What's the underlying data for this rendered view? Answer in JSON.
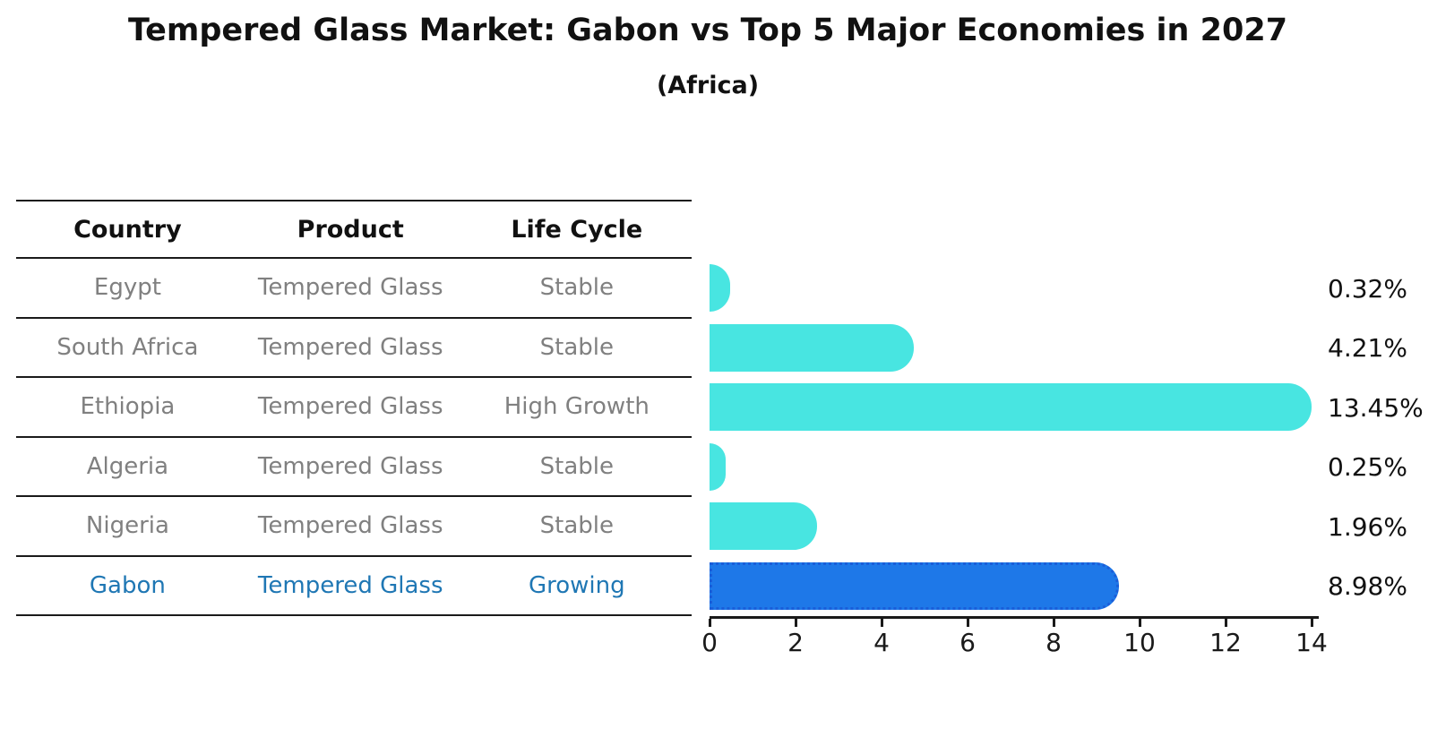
{
  "title": "Tempered Glass Market: Gabon vs Top 5 Major Economies in 2027",
  "subtitle": "(Africa)",
  "table": {
    "headers": [
      "Country",
      "Product",
      "Life Cycle"
    ],
    "rows": [
      {
        "country": "Egypt",
        "product": "Tempered Glass",
        "life_cycle": "Stable",
        "highlighted": false
      },
      {
        "country": "South Africa",
        "product": "Tempered Glass",
        "life_cycle": "Stable",
        "highlighted": false
      },
      {
        "country": "Ethiopia",
        "product": "Tempered Glass",
        "life_cycle": "High Growth",
        "highlighted": false
      },
      {
        "country": "Algeria",
        "product": "Tempered Glass",
        "life_cycle": "Stable",
        "highlighted": false
      },
      {
        "country": "Nigeria",
        "product": "Tempered Glass",
        "life_cycle": "Stable",
        "highlighted": false
      },
      {
        "country": "Gabon",
        "product": "Tempered Glass",
        "life_cycle": "Growing",
        "highlighted": true
      }
    ]
  },
  "chart_data": {
    "type": "bar",
    "orientation": "horizontal",
    "title": "Tempered Glass Market: Gabon vs Top 5 Major Economies in 2027",
    "subtitle": "(Africa)",
    "categories": [
      "Egypt",
      "South Africa",
      "Ethiopia",
      "Algeria",
      "Nigeria",
      "Gabon"
    ],
    "values": [
      0.32,
      4.21,
      13.45,
      0.25,
      1.96,
      8.98
    ],
    "bar_labels": [
      "0.32%",
      "4.21%",
      "13.45%",
      "0.25%",
      "1.96%",
      "8.98%"
    ],
    "unit": "%",
    "xlim": [
      0,
      14
    ],
    "xticks": [
      0,
      2,
      4,
      6,
      8,
      10,
      12,
      14
    ],
    "grid": false,
    "legend": "none",
    "highlight_category": "Gabon",
    "colors": {
      "default_bar": "#48E5E1",
      "highlight_bar": "#1E78E8",
      "highlight_bar_border": "#1A5ED9",
      "highlight_text": "#1F77B4",
      "table_text": "#808080",
      "heading_text": "#111111"
    }
  }
}
